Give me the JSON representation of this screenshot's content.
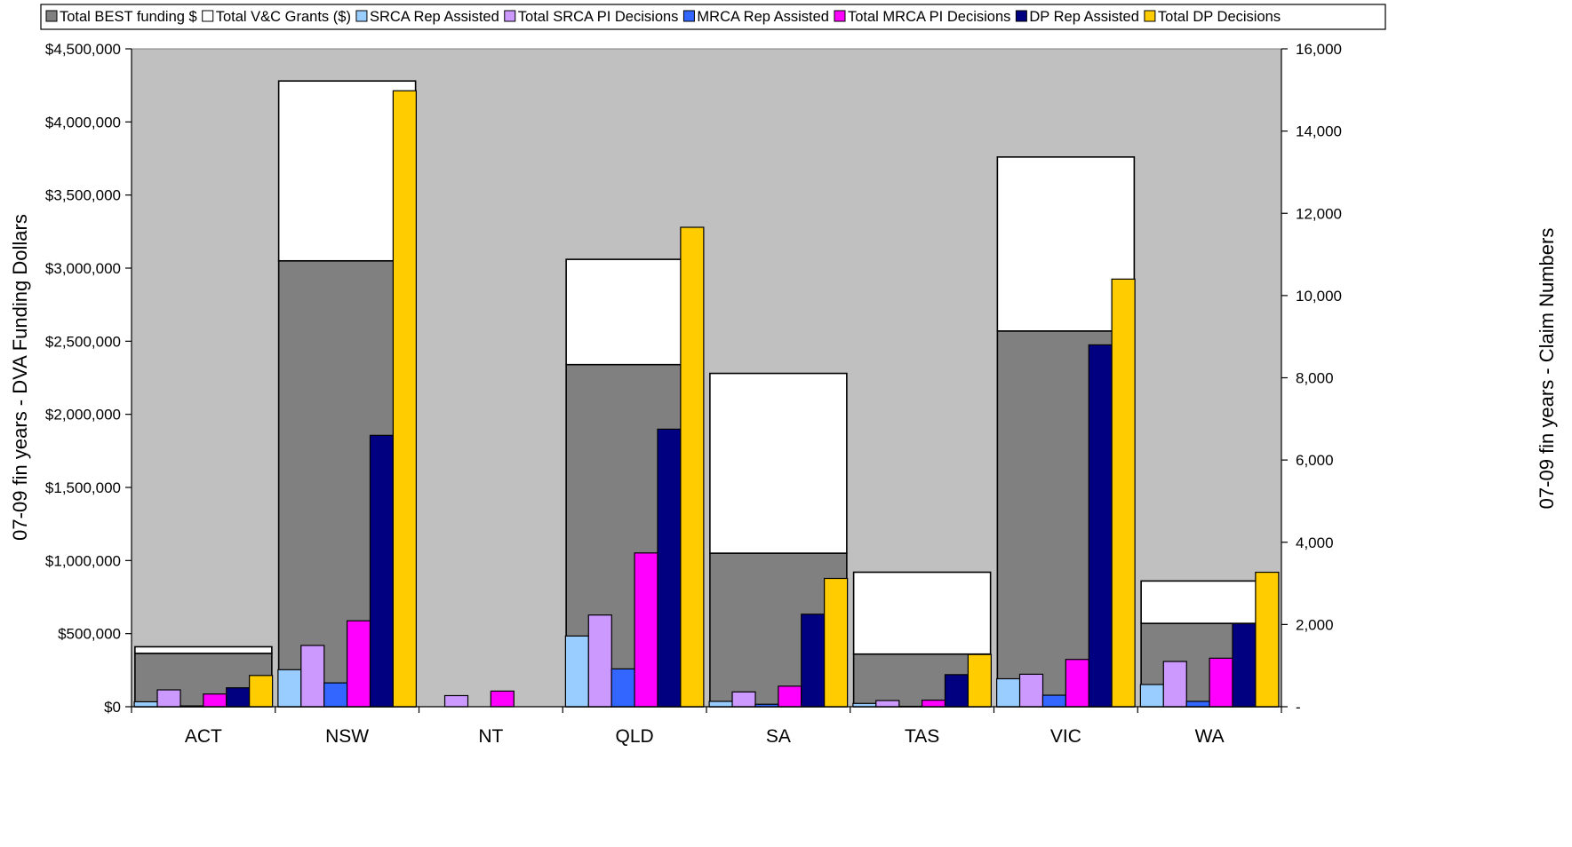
{
  "chart_data": {
    "type": "bar",
    "title": "",
    "categories": [
      "ACT",
      "NSW",
      "NT",
      "QLD",
      "SA",
      "TAS",
      "VIC",
      "WA"
    ],
    "y_left": {
      "label": "07-09 fin years - DVA Funding Dollars",
      "range": [
        0,
        4500000
      ],
      "ticks": [
        "$0",
        "$500,000",
        "$1,000,000",
        "$1,500,000",
        "$2,000,000",
        "$2,500,000",
        "$3,000,000",
        "$3,500,000",
        "$4,000,000",
        "$4,500,000"
      ]
    },
    "y_right": {
      "label": "07-09 fin years - Claim Numbers",
      "range": [
        0,
        16000
      ],
      "ticks": [
        "-",
        "2,000",
        "4,000",
        "6,000",
        "8,000",
        "10,000",
        "12,000",
        "14,000",
        "16,000"
      ]
    },
    "legend_position": "top",
    "grid": false,
    "plot_background": "#C0C0C0",
    "stacked_series": [
      {
        "name": "Total BEST funding $",
        "axis": "left",
        "color": "#808080",
        "values": [
          365000,
          3050000,
          0,
          2340000,
          1050000,
          360000,
          2570000,
          570000
        ]
      },
      {
        "name": "Total V&C Grants ($)",
        "axis": "left",
        "color": "#FFFFFF",
        "values": [
          45000,
          1230000,
          0,
          720000,
          1230000,
          560000,
          1190000,
          290000
        ]
      }
    ],
    "series": [
      {
        "name": "SRCA Rep Assisted",
        "axis": "right",
        "color": "#99CCFF",
        "values": [
          120,
          900,
          0,
          1720,
          130,
          80,
          680,
          540
        ]
      },
      {
        "name": "Total SRCA PI Decisions",
        "axis": "right",
        "color": "#CC99FF",
        "values": [
          410,
          1490,
          270,
          2230,
          360,
          150,
          790,
          1100
        ]
      },
      {
        "name": "MRCA Rep Assisted",
        "axis": "right",
        "color": "#3366FF",
        "values": [
          20,
          580,
          0,
          920,
          60,
          10,
          280,
          130
        ]
      },
      {
        "name": "Total MRCA PI Decisions",
        "axis": "right",
        "color": "#FF00FF",
        "values": [
          310,
          2090,
          380,
          3740,
          500,
          160,
          1150,
          1180
        ]
      },
      {
        "name": "DP Rep Assisted",
        "axis": "right",
        "color": "#000080",
        "values": [
          460,
          6600,
          0,
          6750,
          2250,
          780,
          8800,
          2020
        ]
      },
      {
        "name": "Total DP Decisions",
        "axis": "right",
        "color": "#FFCC00",
        "values": [
          760,
          14980,
          0,
          11660,
          3120,
          1270,
          10400,
          3270
        ]
      }
    ]
  }
}
